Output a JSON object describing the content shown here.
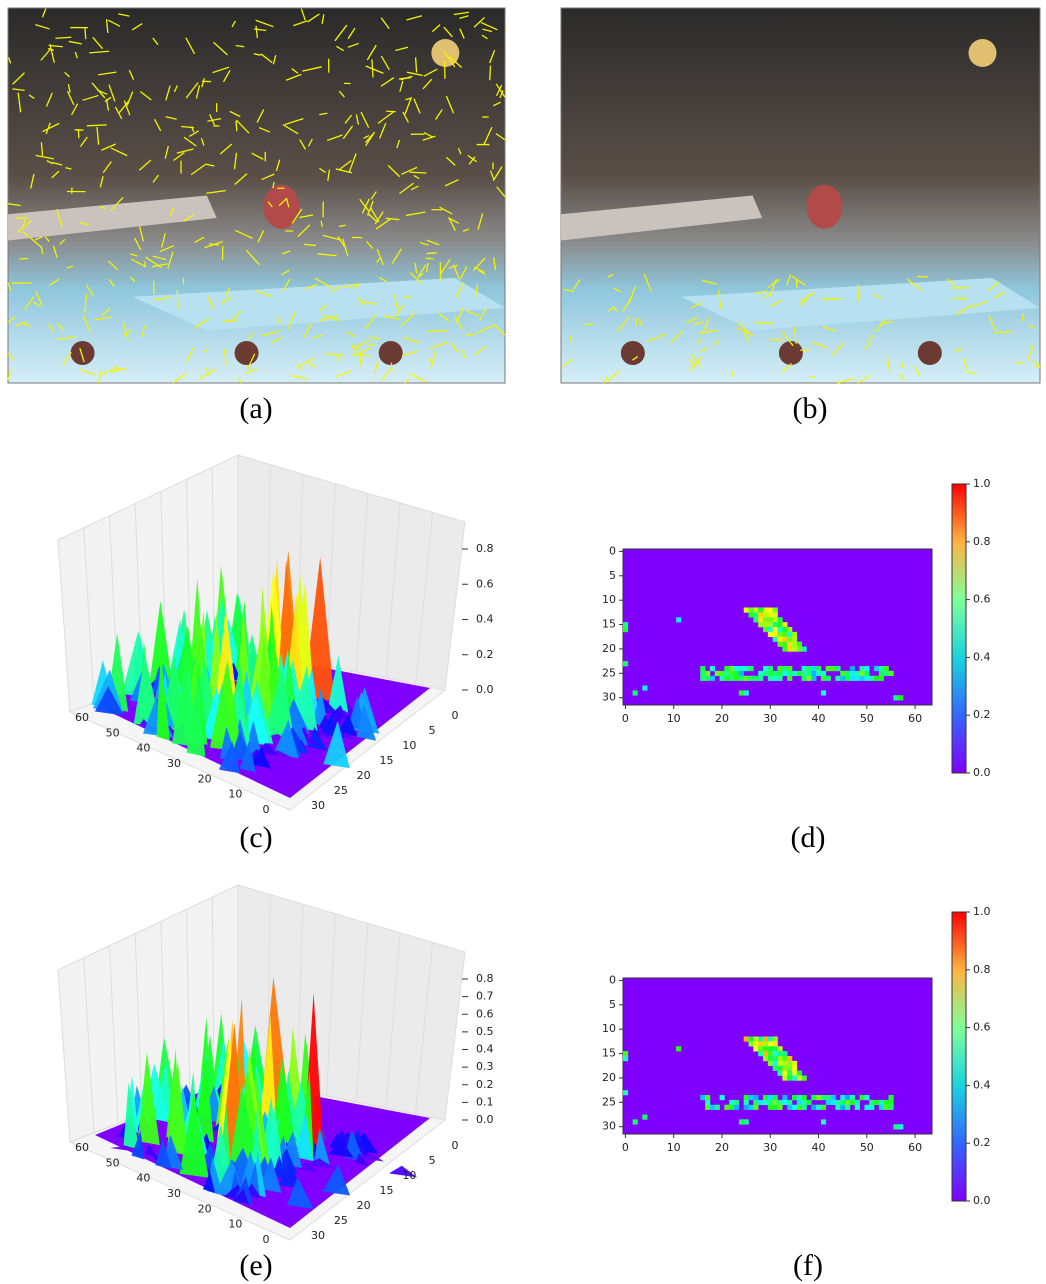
{
  "panels": [
    {
      "caption": "(a)"
    },
    {
      "caption": "(b)"
    },
    {
      "caption": "(c)",
      "z_ticks": [
        "0.0",
        "0.2",
        "0.4",
        "0.6",
        "0.8"
      ],
      "x_ticks": [
        "60",
        "50",
        "40",
        "30",
        "20",
        "10",
        "0"
      ],
      "y_ticks": [
        "0",
        "5",
        "10",
        "15",
        "20",
        "25",
        "30"
      ]
    },
    {
      "caption": "(d)",
      "y_ticks": [
        "0",
        "5",
        "10",
        "15",
        "20",
        "25",
        "30"
      ],
      "x_ticks": [
        "0",
        "10",
        "20",
        "30",
        "40",
        "50",
        "60"
      ],
      "colorbar_ticks": [
        "0.0",
        "0.2",
        "0.4",
        "0.6",
        "0.8",
        "1.0"
      ]
    },
    {
      "caption": "(e)",
      "z_ticks": [
        "0.0",
        "0.1",
        "0.2",
        "0.3",
        "0.4",
        "0.5",
        "0.6",
        "0.7",
        "0.8"
      ],
      "x_ticks": [
        "60",
        "50",
        "40",
        "30",
        "20",
        "10",
        "0"
      ],
      "y_ticks": [
        "0",
        "5",
        "10",
        "15",
        "20",
        "25",
        "30"
      ]
    },
    {
      "caption": "(f)",
      "y_ticks": [
        "0",
        "5",
        "10",
        "15",
        "20",
        "25",
        "30"
      ],
      "x_ticks": [
        "0",
        "10",
        "20",
        "30",
        "40",
        "50",
        "60"
      ],
      "colorbar_ticks": [
        "0.0",
        "0.2",
        "0.4",
        "0.6",
        "0.8",
        "1.0"
      ]
    }
  ]
}
